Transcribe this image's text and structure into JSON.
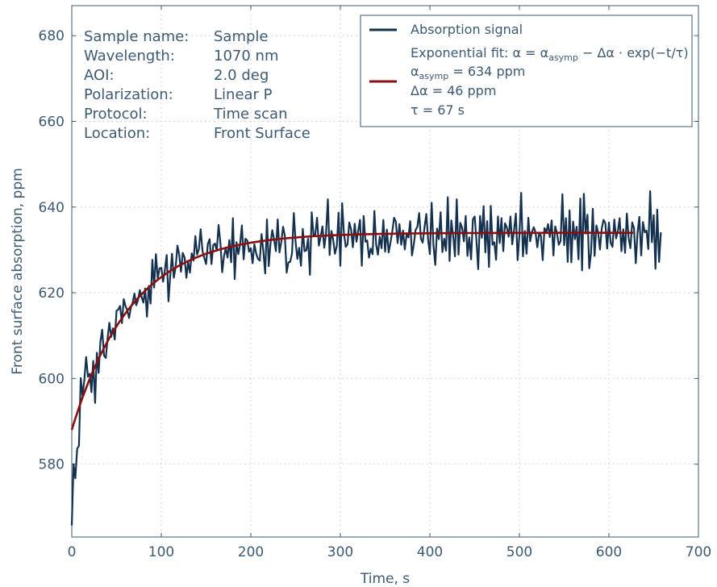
{
  "chart_data": {
    "type": "line",
    "xlabel": "Time, s",
    "ylabel": "Front surface absorption, ppm",
    "xlim": [
      0,
      700
    ],
    "ylim": [
      563,
      687
    ],
    "x_ticks": [
      0,
      100,
      200,
      300,
      400,
      500,
      600,
      700
    ],
    "y_ticks": [
      580,
      600,
      620,
      640,
      660,
      680
    ],
    "grid": true,
    "legend_position": "top-right",
    "info_rows": [
      {
        "key": "Sample name:",
        "value": "Sample"
      },
      {
        "key": "Wavelength:",
        "value": "1070 nm"
      },
      {
        "key": "AOI:",
        "value": "2.0 deg"
      },
      {
        "key": "Polarization:",
        "value": "Linear P"
      },
      {
        "key": "Protocol:",
        "value": "Time scan"
      },
      {
        "key": "Location:",
        "value": "Front Surface"
      }
    ],
    "legend": {
      "signal_label": "Absorption signal",
      "fit_label": "Exponential fit: α = α",
      "fit_label_sub": "asymp",
      "fit_label_tail": " − Δα · exp(−t/τ)",
      "param1_symbol": "α",
      "param1_sub": "asymp",
      "param1_value": " = 634 ppm",
      "param2": "Δα = 46 ppm",
      "param3": "τ = 67 s"
    },
    "fit": {
      "name": "Exponential fit",
      "color": "#8b0f0f",
      "alpha_asymp": 634,
      "delta_alpha": 46,
      "tau": 67,
      "x_start": 0,
      "x_end": 627
    },
    "series": [
      {
        "name": "Absorption signal",
        "color": "#14324f",
        "x_start": 0,
        "x_step": 2,
        "values": [
          565.7,
          580,
          576.7,
          583.6,
          584.3,
          600.1,
          596,
          599.5,
          605,
          600.4,
          601.1,
          596.8,
          604.1,
          594.3,
          606,
          601.3,
          608.6,
          611.4,
          605.3,
          604.8,
          609.4,
          613,
          609.7,
          611.7,
          609.1,
          615.8,
          616.1,
          616.9,
          612.9,
          618.5,
          616.9,
          615.9,
          614.1,
          616.6,
          617.7,
          619.8,
          617.1,
          618.3,
          620.6,
          619,
          617.7,
          621,
          614.4,
          621.6,
          617.5,
          627.7,
          621.2,
          629,
          623.3,
          625.7,
          625.8,
          622.6,
          625.3,
          628.8,
          618,
          624,
          629.1,
          623.5,
          626,
          631,
          628.9,
          624.9,
          629.3,
          628.2,
          623.5,
          627.2,
          624.7,
          629.2,
          627.5,
          633.2,
          628.9,
          630.2,
          634.8,
          629.7,
          628.1,
          626.7,
          631.4,
          632.5,
          626.7,
          631.1,
          631.5,
          629.8,
          635.8,
          631.6,
          624.8,
          628.5,
          630.4,
          628.2,
          632.3,
          627.1,
          637.4,
          623.2,
          631.8,
          629,
          631.4,
          635.7,
          627.8,
          632.6,
          632.2,
          629.6,
          630.4,
          626.9,
          631.3,
          629.1,
          627.9,
          627.5,
          633.7,
          629.7,
          624.5,
          637.1,
          626.2,
          631.5,
          634.6,
          632.3,
          629.7,
          637.1,
          629.4,
          631.8,
          635.4,
          633.2,
          624.7,
          627.1,
          627.2,
          629.2,
          638.6,
          631.9,
          627.9,
          630.5,
          626.3,
          634.9,
          629.7,
          629.9,
          632.6,
          624.2,
          638.8,
          633.5,
          633.6,
          637.5,
          631,
          633.1,
          635.5,
          630.5,
          633.7,
          641.8,
          628.8,
          634.4,
          632.4,
          629.1,
          630.9,
          638.7,
          626.3,
          640.9,
          633.9,
          630.7,
          631.3,
          636.4,
          634.8,
          630.6,
          636.1,
          631.9,
          634.5,
          637,
          626.3,
          637.9,
          631.9,
          632.2,
          628.2,
          630.3,
          629,
          639.1,
          631.2,
          628.9,
          633.1,
          630.4,
          637,
          629.6,
          634.7,
          629.4,
          631.8,
          634.3,
          637.5,
          636.6,
          631.6,
          636,
          631.2,
          634.5,
          630.1,
          633.6,
          632.9,
          636.7,
          628.7,
          631.2,
          634.6,
          635.4,
          638.6,
          632.6,
          631.7,
          635.2,
          638.4,
          632.4,
          629,
          641,
          631.2,
          626.5,
          635,
          632.5,
          638.8,
          629.5,
          632.6,
          629.8,
          642.3,
          627.4,
          636.9,
          633.2,
          628.5,
          641.8,
          628.9,
          636.3,
          635.1,
          632,
          637.9,
          628.6,
          632.9,
          627.8,
          637.1,
          637.8,
          632.3,
          625.5,
          637.9,
          632.8,
          640.2,
          629.4,
          636.7,
          626,
          640.3,
          631.2,
          631.8,
          627.7,
          637.8,
          631.6,
          637.4,
          629.7,
          636.2,
          635.2,
          633.1,
          637.8,
          631.3,
          634.5,
          638.5,
          627.6,
          633.4,
          643.3,
          628.5,
          634.4,
          629.1,
          637.5,
          632,
          634.1,
          635.3,
          634.1,
          630.6,
          633.8,
          633.4,
          627.6,
          635.1,
          634,
          636,
          633,
          636.9,
          628.7,
          635.5,
          633.9,
          631.2,
          632.1,
          643,
          631.1,
          637.4,
          627.2,
          639.2,
          627.1,
          636.6,
          632.5,
          635.4,
          627.8,
          642,
          625.2,
          643.1,
          633.8,
          638.2,
          625.7,
          629.3,
          639.6,
          628.6,
          635.7,
          634,
          630.1,
          635,
          637,
          636.2,
          630.3,
          636.4,
          631.6,
          630.7,
          637.1,
          632.7,
          634.4,
          637.4,
          629.7,
          634.8,
          629.3,
          638.5,
          632.8,
          630.4,
          636.4,
          635.1,
          626.9,
          634,
          637.7,
          628.7,
          636.5,
          634.1,
          634.5,
          630.2,
          643.7,
          631.8,
          638.1,
          625.6,
          639.4,
          627.2,
          634.1
        ]
      }
    ]
  }
}
